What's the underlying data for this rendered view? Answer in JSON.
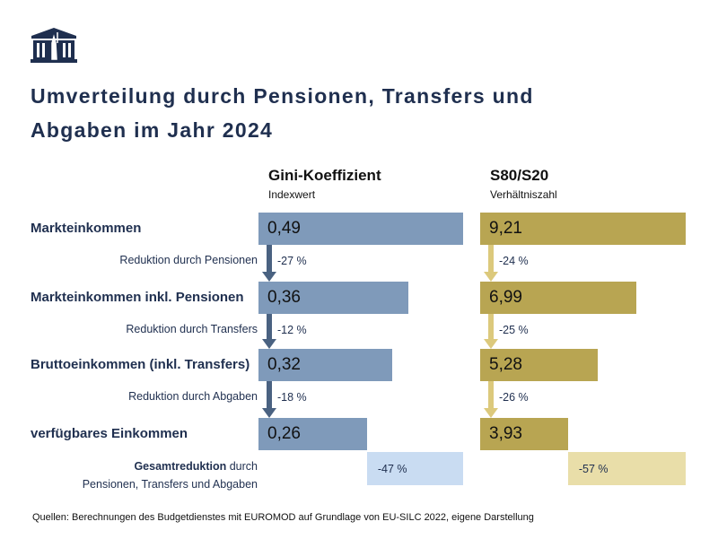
{
  "logo": {
    "name": "parliament-building-logo"
  },
  "title": "Umverteilung durch Pensionen, Transfers und Abgaben im Jahr 2024",
  "colors": {
    "gini_bar": "#7f9aba",
    "gini_arrow": "#4a6281",
    "gini_total": "#c9dcf2",
    "s80_bar": "#b8a552",
    "s80_arrow": "#dcc97c",
    "s80_total": "#e9dea9"
  },
  "chart_data": {
    "type": "bar",
    "orientation": "horizontal",
    "categories": [
      "Markteinkommen",
      "Markteinkommen inkl. Pensionen",
      "Bruttoeinkommen (inkl. Transfers)",
      "verfügbares Einkommen"
    ],
    "category_labels": [
      "Markteinkommen",
      "Markteinkommen inkl. Pensionen",
      "Bruttoeinkommen (inkl. Transfers)",
      "verfügbares Einkommen"
    ],
    "series": [
      {
        "name": "Gini-Koeffizient",
        "unit": "Indexwert",
        "values": [
          0.49,
          0.36,
          0.32,
          0.26
        ],
        "labels": [
          "0,49",
          "0,36",
          "0,32",
          "0,26"
        ],
        "reductions": [
          "-27 %",
          "-12 %",
          "-18 %"
        ],
        "total_reduction": "-47 %"
      },
      {
        "name": "S80/S20",
        "unit": "Verhältniszahl",
        "values": [
          9.21,
          6.99,
          5.28,
          3.93
        ],
        "labels": [
          "9,21",
          "6,99",
          "5,28",
          "3,93"
        ],
        "reductions": [
          "-24 %",
          "-25 %",
          "-26 %"
        ],
        "total_reduction": "-57 %"
      }
    ],
    "reduction_labels": [
      "Reduktion durch Pensionen",
      "Reduktion durch Transfers",
      "Reduktion durch Abgaben"
    ],
    "total_label_bold": "Gesamtreduktion",
    "total_label_rest1": " durch",
    "total_label_rest2": "Pensionen, Transfers und Abgaben"
  },
  "source": "Quellen: Berechnungen des Budgetdienstes mit EUROMOD auf Grundlage von EU-SILC 2022, eigene Darstellung"
}
